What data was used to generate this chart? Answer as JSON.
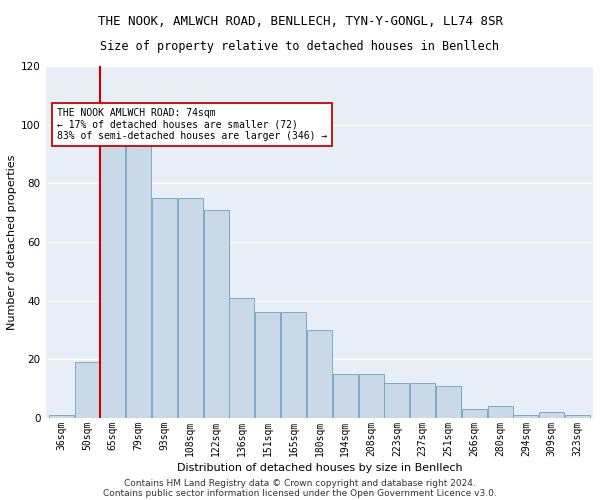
{
  "title": "THE NOOK, AMLWCH ROAD, BENLLECH, TYN-Y-GONGL, LL74 8SR",
  "subtitle": "Size of property relative to detached houses in Benllech",
  "xlabel": "Distribution of detached houses by size in Benllech",
  "ylabel": "Number of detached properties",
  "bar_labels": [
    "36sqm",
    "50sqm",
    "65sqm",
    "79sqm",
    "93sqm",
    "108sqm",
    "122sqm",
    "136sqm",
    "151sqm",
    "165sqm",
    "180sqm",
    "194sqm",
    "208sqm",
    "223sqm",
    "237sqm",
    "251sqm",
    "266sqm",
    "280sqm",
    "294sqm",
    "309sqm",
    "323sqm"
  ],
  "bar_values": [
    1,
    19,
    94,
    94,
    75,
    75,
    71,
    41,
    36,
    36,
    30,
    15,
    15,
    12,
    12,
    11,
    3,
    4,
    1,
    2,
    1
  ],
  "bar_color": "#c9d9e8",
  "bar_edgecolor": "#7aaac8",
  "vline_x_idx": 2,
  "vline_color": "#cc0000",
  "annotation_text": "THE NOOK AMLWCH ROAD: 74sqm\n← 17% of detached houses are smaller (72)\n83% of semi-detached houses are larger (346) →",
  "annotation_box_facecolor": "#ffffff",
  "annotation_box_edgecolor": "#cc0000",
  "ylim": [
    0,
    120
  ],
  "yticks": [
    0,
    20,
    40,
    60,
    80,
    100,
    120
  ],
  "background_color": "#e8eef5",
  "footer_line1": "Contains HM Land Registry data © Crown copyright and database right 2024.",
  "footer_line2": "Contains public sector information licensed under the Open Government Licence v3.0.",
  "title_fontsize": 9,
  "subtitle_fontsize": 8.5,
  "tick_fontsize": 7,
  "ylabel_fontsize": 8,
  "xlabel_fontsize": 8,
  "footer_fontsize": 6.5
}
